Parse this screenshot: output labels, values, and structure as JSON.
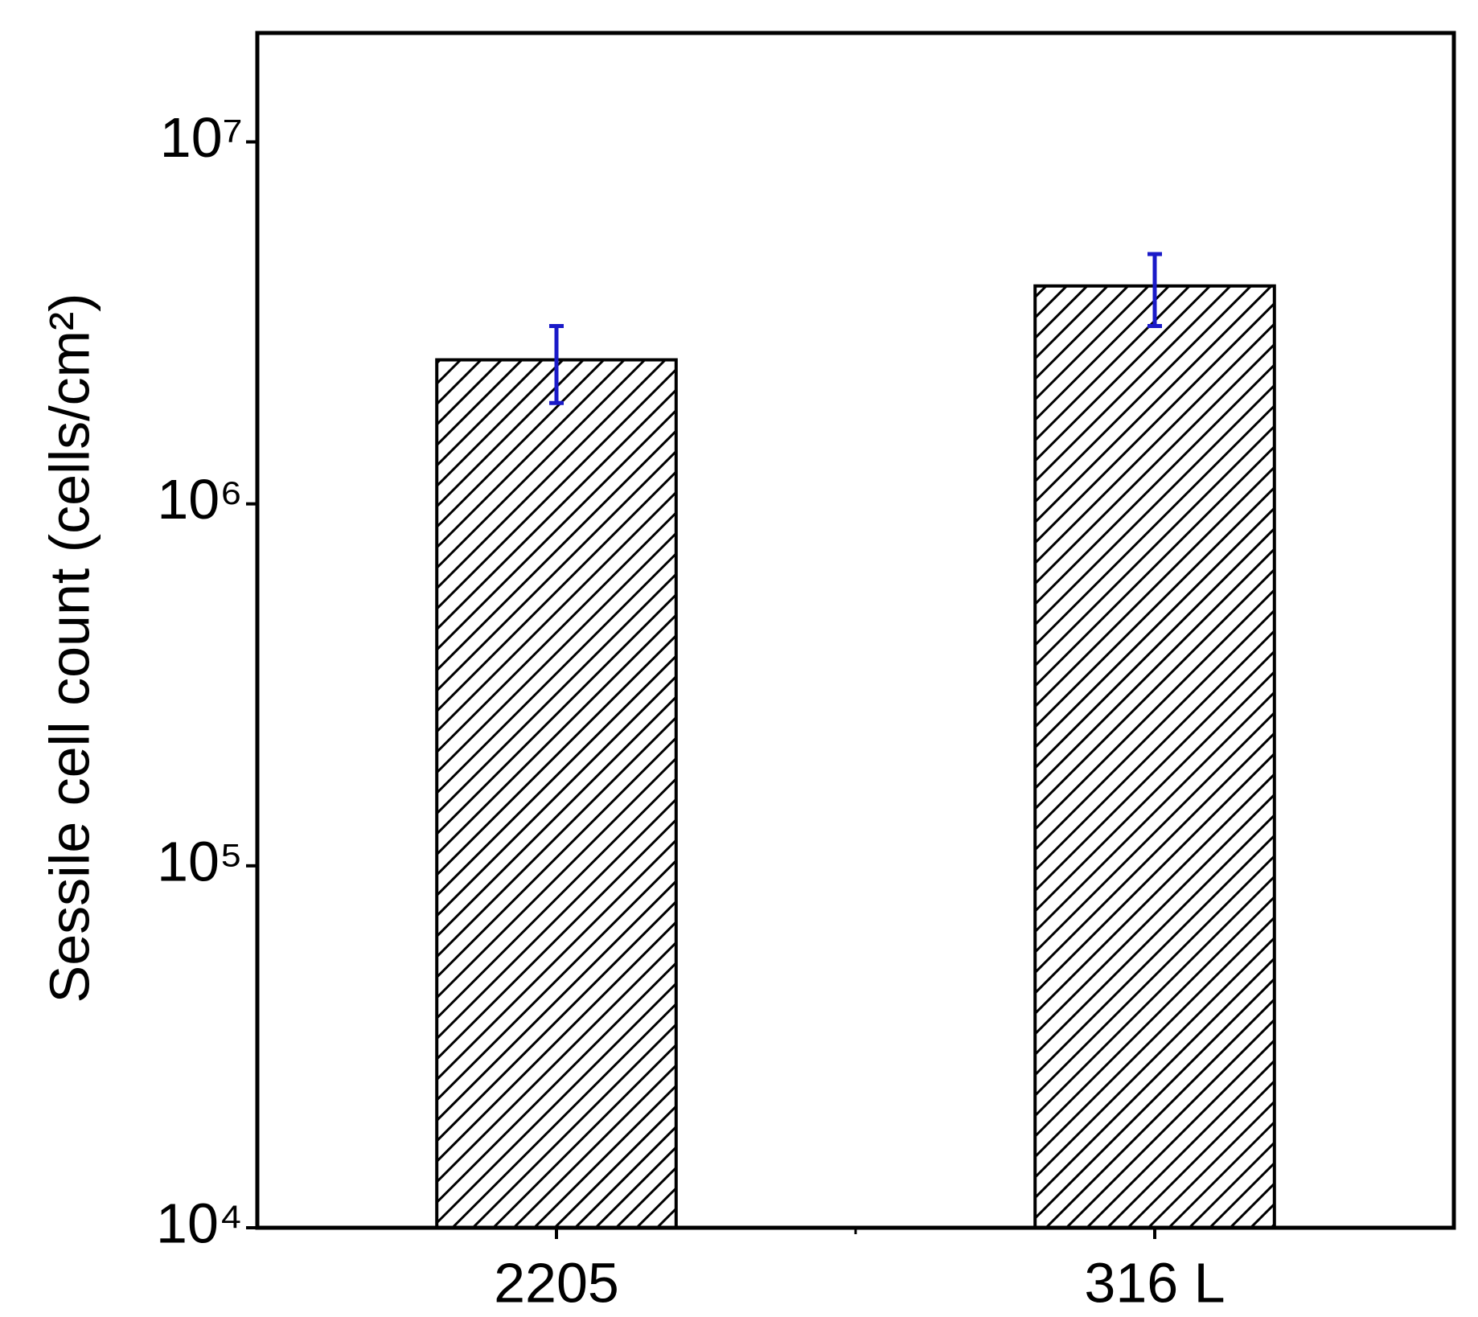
{
  "chart_data": {
    "type": "bar",
    "y_label": "Sessile cell count (cells/cm²)",
    "categories": [
      "2205",
      "316 L"
    ],
    "values": [
      2500000,
      4000000
    ],
    "errors": [
      600000,
      900000
    ],
    "color": "#000000",
    "error_color": "#1a1ac8",
    "hatch": true,
    "ylog": true,
    "ylim": [
      10000,
      20000000
    ],
    "yticks": [
      {
        "value": 10000,
        "label": "10⁴"
      },
      {
        "value": 100000,
        "label": "10⁵"
      },
      {
        "value": 1000000,
        "label": "10⁶"
      },
      {
        "value": 10000000,
        "label": "10⁷"
      }
    ],
    "grid": false
  }
}
